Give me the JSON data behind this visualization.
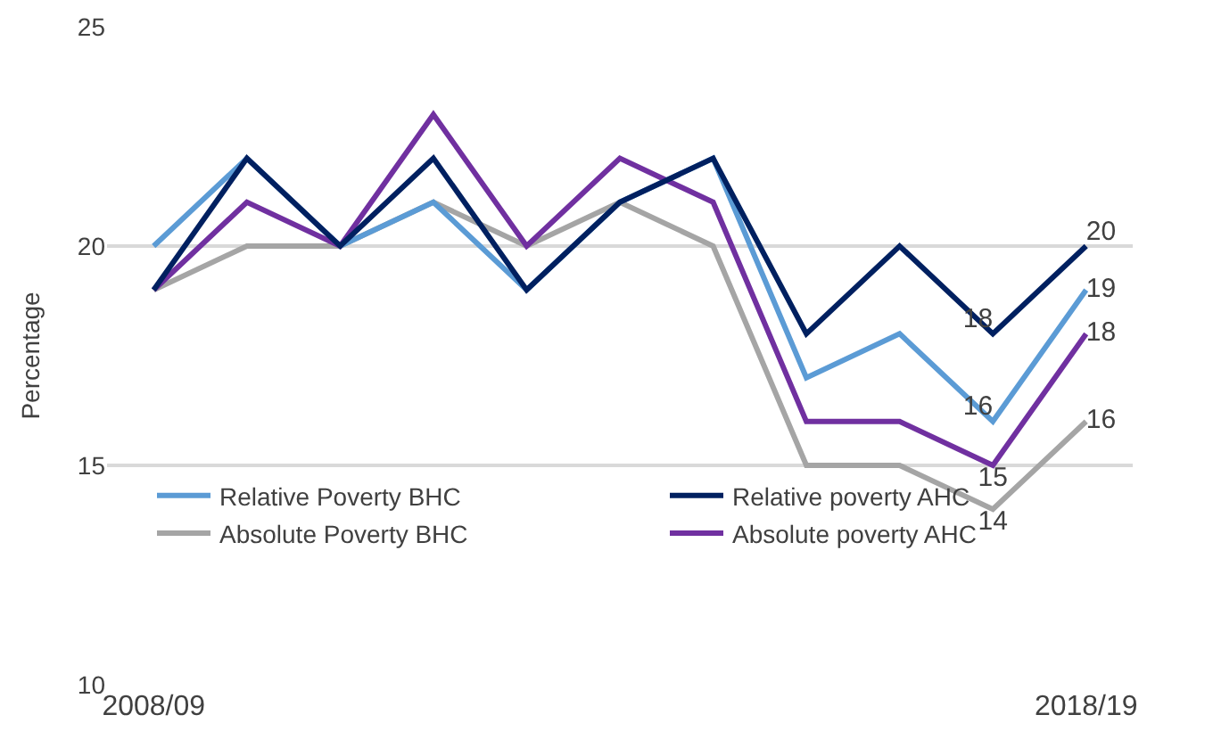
{
  "chart_data": {
    "type": "line",
    "ylabel": "Percentage",
    "categories": [
      "2008/09",
      null,
      null,
      null,
      null,
      null,
      null,
      null,
      null,
      null,
      "2018/19"
    ],
    "ylim": [
      10,
      25
    ],
    "yticks": [
      10,
      15,
      20,
      25
    ],
    "grid": "y",
    "legend": "bottom",
    "series": [
      {
        "name": "Relative Poverty BHC",
        "color": "#5b9bd5",
        "values": [
          20,
          22,
          20,
          21,
          19,
          21,
          22,
          17,
          18,
          16,
          19
        ],
        "value_labels": [
          null,
          null,
          null,
          null,
          null,
          null,
          null,
          null,
          null,
          "16",
          "19"
        ]
      },
      {
        "name": "Relative poverty AHC",
        "color": "#002060",
        "values": [
          19,
          22,
          20,
          22,
          19,
          21,
          22,
          18,
          20,
          18,
          20
        ],
        "value_labels": [
          null,
          null,
          null,
          null,
          null,
          null,
          null,
          null,
          null,
          "18",
          "20"
        ]
      },
      {
        "name": "Absolute Poverty BHC",
        "color": "#a5a5a5",
        "values": [
          19,
          20,
          20,
          21,
          20,
          21,
          20,
          15,
          15,
          14,
          16
        ],
        "value_labels": [
          null,
          null,
          null,
          null,
          null,
          null,
          null,
          null,
          null,
          "14",
          "16"
        ]
      },
      {
        "name": "Absolute poverty AHC",
        "color": "#7030a0",
        "values": [
          19,
          21,
          20,
          23,
          20,
          22,
          21,
          16,
          16,
          15,
          18
        ],
        "value_labels": [
          null,
          null,
          null,
          null,
          null,
          null,
          null,
          null,
          null,
          "15",
          "18"
        ]
      }
    ]
  }
}
